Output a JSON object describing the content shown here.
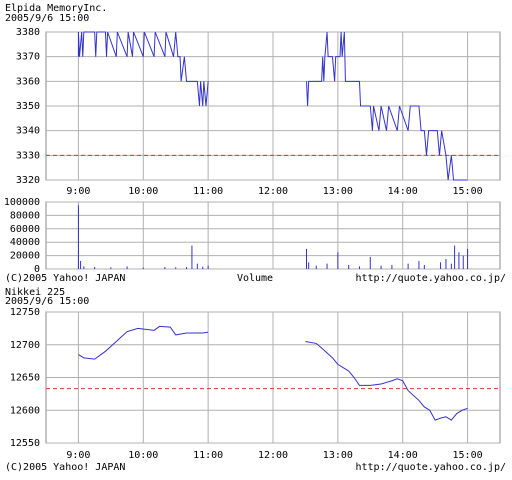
{
  "chart_data": [
    {
      "type": "line",
      "title": "Elpida  MemoryInc.",
      "subtitle": "2005/9/6 15:00",
      "x": [
        540,
        540,
        541,
        543,
        544,
        545,
        555,
        556,
        557,
        565,
        566,
        567,
        575,
        576,
        585,
        586,
        590,
        591,
        600,
        601,
        610,
        611,
        620,
        621,
        628,
        630,
        632,
        634,
        635,
        638,
        640,
        650,
        652,
        653,
        655,
        656,
        658,
        660,
        null,
        751,
        752,
        753,
        765,
        766,
        767,
        768,
        770,
        771,
        775,
        777,
        778,
        782,
        783,
        784,
        786,
        787,
        800,
        801,
        810,
        812,
        813,
        818,
        820,
        825,
        827,
        835,
        837,
        845,
        847,
        855,
        857,
        860,
        862,
        864,
        872,
        874,
        876,
        880,
        882,
        885,
        887,
        896,
        900
      ],
      "values": [
        3370,
        3380,
        3370,
        3380,
        3370,
        3380,
        3380,
        3370,
        3380,
        3380,
        3370,
        3380,
        3370,
        3380,
        3370,
        3380,
        3370,
        3380,
        3370,
        3380,
        3370,
        3380,
        3370,
        3380,
        3370,
        3380,
        3370,
        3370,
        3360,
        3370,
        3360,
        3360,
        3350,
        3360,
        3350,
        3360,
        3350,
        3360,
        null,
        3360,
        3350,
        3360,
        3360,
        3370,
        3360,
        3370,
        3380,
        3370,
        3370,
        3360,
        3370,
        3370,
        3380,
        3370,
        3380,
        3360,
        3360,
        3350,
        3350,
        3340,
        3350,
        3340,
        3350,
        3340,
        3350,
        3340,
        3350,
        3340,
        3350,
        3350,
        3340,
        3340,
        3330,
        3340,
        3340,
        3330,
        3340,
        3330,
        3320,
        3330,
        3320,
        3320,
        3320
      ],
      "color": "#3333cc",
      "reference_line": 3330,
      "reference_color": "#dd3333",
      "xlim": [
        510,
        930
      ],
      "ylim": [
        3320,
        3380
      ],
      "yticks": [
        3320,
        3330,
        3340,
        3350,
        3360,
        3370,
        3380
      ],
      "xticks": [
        {
          "value": 540,
          "label": "9:00"
        },
        {
          "value": 600,
          "label": "10:00"
        },
        {
          "value": 660,
          "label": "11:00"
        },
        {
          "value": 720,
          "label": "12:00"
        },
        {
          "value": 780,
          "label": "13:00"
        },
        {
          "value": 840,
          "label": "14:00"
        },
        {
          "value": 900,
          "label": "15:00"
        }
      ],
      "grid": true
    },
    {
      "type": "bar",
      "x_label": "Volume",
      "copyright": "(C)2005 Yahoo! JAPAN",
      "source_url": "http://quote.yahoo.co.jp/",
      "x": [
        540,
        542,
        545,
        555,
        570,
        585,
        600,
        620,
        630,
        640,
        645,
        650,
        655,
        660,
        751,
        753,
        760,
        770,
        780,
        790,
        800,
        810,
        820,
        830,
        845,
        855,
        860,
        875,
        880,
        885,
        888,
        892,
        896,
        900
      ],
      "values": [
        95000,
        12000,
        4000,
        3000,
        2500,
        4000,
        2000,
        3000,
        2500,
        3000,
        35000,
        8000,
        3500,
        5000,
        30000,
        10000,
        5000,
        8000,
        25000,
        6000,
        4000,
        18000,
        5000,
        6000,
        8000,
        12000,
        6000,
        10000,
        15000,
        8000,
        35000,
        25000,
        20000,
        30000
      ],
      "color": "#3333cc",
      "xlim": [
        510,
        930
      ],
      "ylim": [
        0,
        100000
      ],
      "yticks": [
        0,
        20000,
        40000,
        60000,
        80000,
        100000
      ],
      "grid": true
    },
    {
      "type": "line",
      "title": "Nikkei 225",
      "subtitle": "2005/9/6 15:00",
      "copyright": "(C)2005 Yahoo! JAPAN",
      "source_url": "http://quote.yahoo.co.jp/",
      "x": [
        540,
        545,
        555,
        565,
        575,
        585,
        595,
        610,
        615,
        625,
        630,
        640,
        655,
        660,
        null,
        750,
        760,
        765,
        775,
        780,
        785,
        790,
        795,
        800,
        810,
        820,
        830,
        835,
        840,
        845,
        855,
        860,
        865,
        870,
        875,
        880,
        885,
        890,
        895,
        900
      ],
      "values": [
        12685,
        12680,
        12678,
        12690,
        12705,
        12720,
        12725,
        12722,
        12728,
        12727,
        12715,
        12718,
        12718,
        12719,
        null,
        12705,
        12702,
        12695,
        12680,
        12670,
        12665,
        12660,
        12650,
        12638,
        12638,
        12640,
        12645,
        12648,
        12645,
        12630,
        12615,
        12605,
        12600,
        12585,
        12588,
        12590,
        12585,
        12595,
        12600,
        12603
      ],
      "color": "#3333cc",
      "reference_line": 12633,
      "reference_color": "#dd3333",
      "xlim": [
        510,
        930
      ],
      "ylim": [
        12550,
        12750
      ],
      "yticks": [
        12550,
        12600,
        12650,
        12700,
        12750
      ],
      "xticks": [
        {
          "value": 540,
          "label": "9:00"
        },
        {
          "value": 600,
          "label": "10:00"
        },
        {
          "value": 660,
          "label": "11:00"
        },
        {
          "value": 720,
          "label": "12:00"
        },
        {
          "value": 780,
          "label": "13:00"
        },
        {
          "value": 840,
          "label": "14:00"
        },
        {
          "value": 900,
          "label": "15:00"
        }
      ],
      "grid": true
    }
  ]
}
